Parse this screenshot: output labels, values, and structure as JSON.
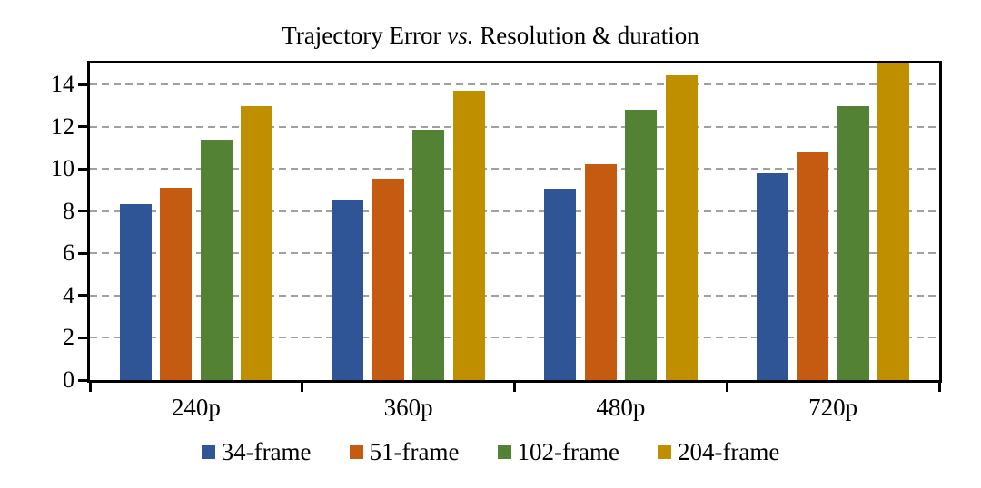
{
  "chart_data": {
    "type": "bar",
    "title": "Trajectory Error vs. Resolution & duration",
    "title_parts": {
      "prefix": "Trajectory Error ",
      "italic": "vs.",
      "suffix": " Resolution & duration"
    },
    "categories": [
      "240p",
      "360p",
      "480p",
      "720p"
    ],
    "series": [
      {
        "name": "34-frame",
        "color": "#2F5597",
        "values": [
          8.35,
          8.5,
          9.05,
          9.8
        ]
      },
      {
        "name": "51-frame",
        "color": "#C55A11",
        "values": [
          9.1,
          9.55,
          10.25,
          10.8
        ]
      },
      {
        "name": "102-frame",
        "color": "#548235",
        "values": [
          11.4,
          11.85,
          12.8,
          13.0
        ]
      },
      {
        "name": "204-frame",
        "color": "#BF8F00",
        "values": [
          13.0,
          13.7,
          14.45,
          15.0
        ]
      }
    ],
    "xlabel": "",
    "ylabel": "",
    "ylim": [
      0,
      15
    ],
    "yticks": [
      0,
      2,
      4,
      6,
      8,
      10,
      12,
      14
    ],
    "grid": "horizontal-dashed",
    "grid_color": "#A0A0A0",
    "axis_color": "#000000",
    "legend_position": "bottom"
  }
}
